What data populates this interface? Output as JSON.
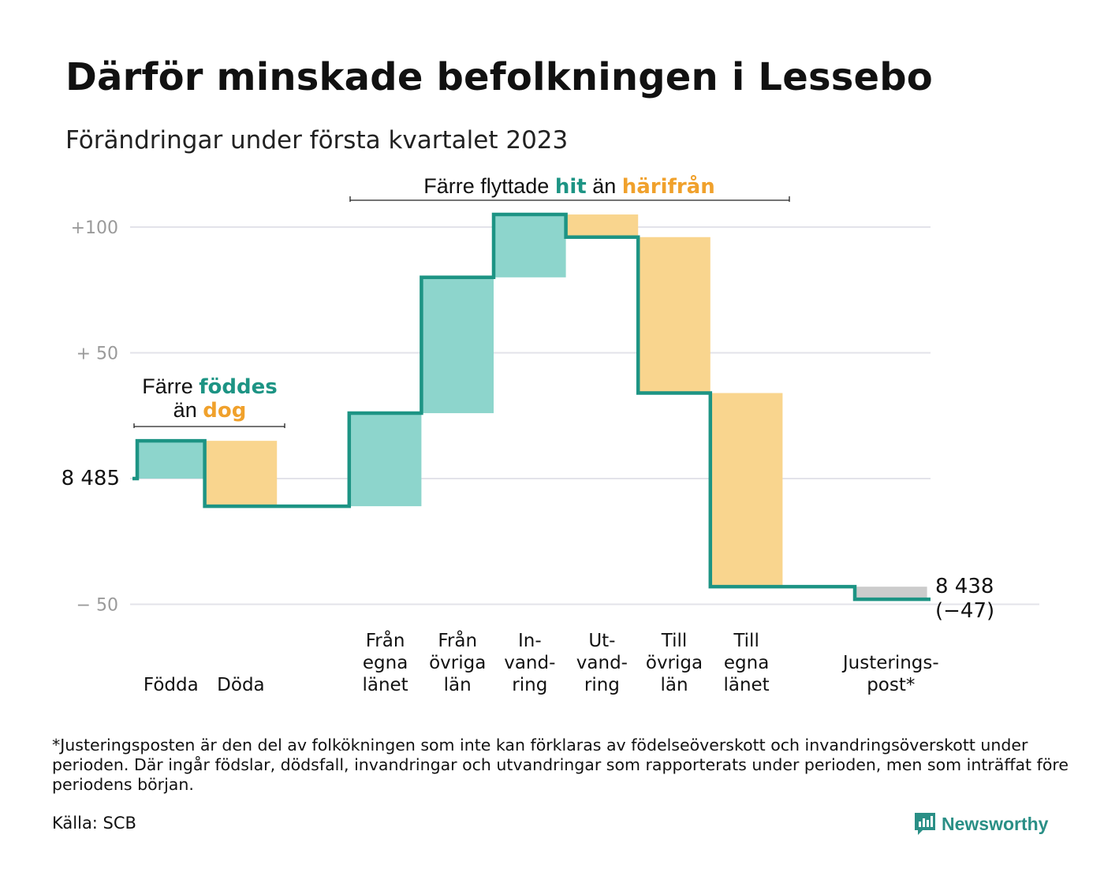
{
  "title": "Därför minskade befolkningen i Lessebo",
  "subtitle": "Förändringar under första kvartalet 2023",
  "colors": {
    "increase": "#8dd5cc",
    "decrease": "#f9d58e",
    "adjustment": "#cccccc",
    "line": "#1d9484",
    "teal_text": "#1d9484",
    "orange_text": "#f0a12c",
    "grid": "#e3e3ea"
  },
  "chart_data": {
    "type": "waterfall",
    "start": {
      "label": "8 485",
      "value": 8485
    },
    "end": {
      "label_value": "8 438",
      "label_change": "(−47)",
      "value": 8438
    },
    "y_axis": {
      "min_change": -50,
      "max_change": 105,
      "ticks": [
        {
          "change": 100,
          "label": "+100"
        },
        {
          "change": 50,
          "label": "+ 50"
        },
        {
          "change": 0,
          "label": "8 485"
        },
        {
          "change": -50,
          "label": "− 50"
        }
      ]
    },
    "steps": [
      {
        "label_lines": [
          "Födda"
        ],
        "value": 15,
        "kind": "increase"
      },
      {
        "label_lines": [
          "Döda"
        ],
        "value": -26,
        "kind": "decrease"
      },
      {
        "label_lines": [],
        "value": 0,
        "kind": "gap"
      },
      {
        "label_lines": [
          "Från",
          "egna",
          "länet"
        ],
        "value": 37,
        "kind": "increase"
      },
      {
        "label_lines": [
          "Från",
          "övriga",
          "län"
        ],
        "value": 54,
        "kind": "increase"
      },
      {
        "label_lines": [
          "In-",
          "vand-",
          "ring"
        ],
        "value": 25,
        "kind": "increase"
      },
      {
        "label_lines": [
          "Ut-",
          "vand-",
          "ring"
        ],
        "value": -9,
        "kind": "decrease"
      },
      {
        "label_lines": [
          "Till",
          "övriga",
          "län"
        ],
        "value": -62,
        "kind": "decrease"
      },
      {
        "label_lines": [
          "Till",
          "egna",
          "länet"
        ],
        "value": -77,
        "kind": "decrease"
      },
      {
        "label_lines": [],
        "value": 0,
        "kind": "gap"
      },
      {
        "label_lines": [
          "Justerings-",
          "post*"
        ],
        "value": -5,
        "kind": "adjustment"
      }
    ],
    "annotations": [
      {
        "parts": [
          [
            "Färre ",
            "plain"
          ],
          [
            "föddes",
            "teal"
          ]
        ],
        "line2": [
          [
            "än ",
            "plain"
          ],
          [
            "dog",
            "orange"
          ]
        ]
      },
      {
        "parts": [
          [
            "Färre flyttade ",
            "plain"
          ],
          [
            "hit",
            "teal"
          ],
          [
            " än ",
            "plain"
          ],
          [
            "härifrån",
            "orange"
          ]
        ]
      }
    ]
  },
  "footnote": "*Justeringsposten är den del av folkökningen som inte kan förklaras av födelseöverskott och invandringsöverskott under perioden. Där ingår födslar, dödsfall, invandringar och utvandringar som rapporterats under perioden, men som inträffat före periodens början.",
  "source": "Källa: SCB",
  "brand": "Newsworthy"
}
